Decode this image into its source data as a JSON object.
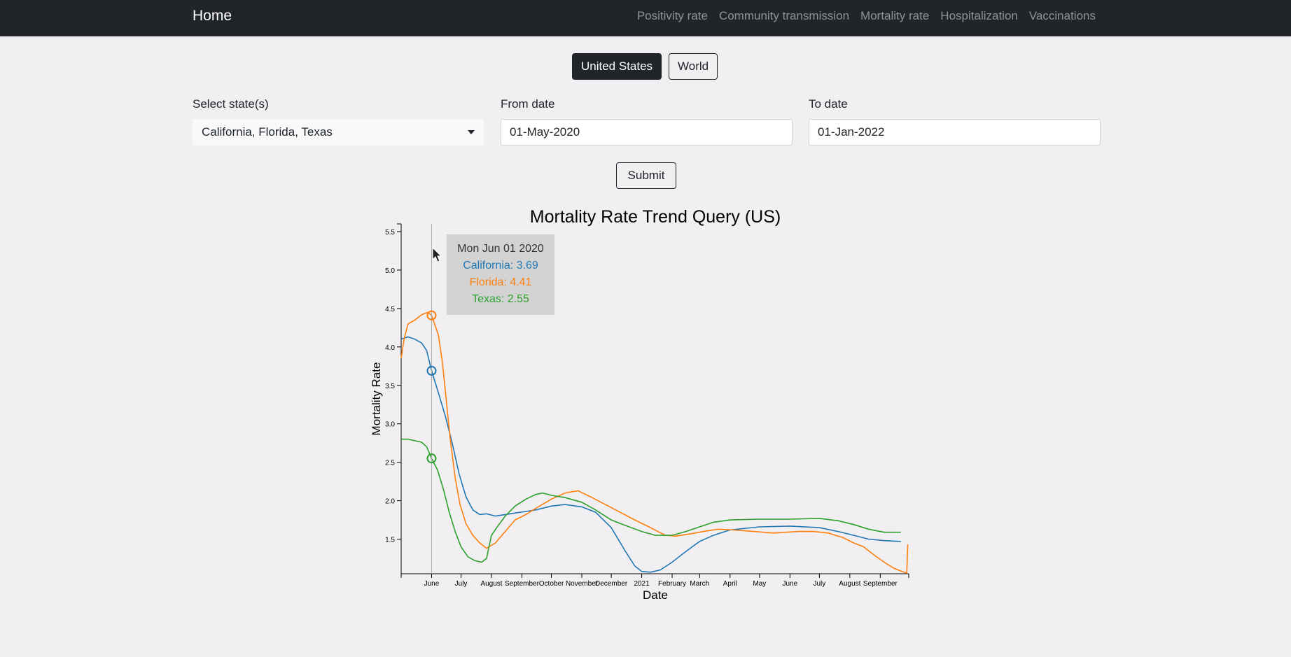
{
  "nav": {
    "brand": "Home",
    "links": [
      "Positivity rate",
      "Community transmission",
      "Mortality rate",
      "Hospitalization",
      "Vaccinations"
    ]
  },
  "toggle": {
    "us_label": "United States",
    "world_label": "World"
  },
  "form": {
    "states_label": "Select state(s)",
    "states_value": "California, Florida, Texas",
    "from_label": "From date",
    "from_value": "01-May-2020",
    "to_label": "To date",
    "to_value": "01-Jan-2022",
    "submit_label": "Submit"
  },
  "tooltip": {
    "date": "Mon Jun 01 2020",
    "lines": [
      "California: 3.69",
      "Florida: 4.41",
      "Texas: 2.55"
    ]
  },
  "colors": {
    "california": "#1f77b4",
    "florida": "#ff7f0e",
    "texas": "#2ca02c"
  },
  "chart_data": {
    "type": "line",
    "title": "Mortality Rate Trend Query (US)",
    "xlabel": "Date",
    "ylabel": "Mortality Rate",
    "xlim": [
      "2020-05-01",
      "2021-09-30"
    ],
    "ylim": [
      1.05,
      5.6
    ],
    "yticks": [
      1.5,
      2.0,
      2.5,
      3.0,
      3.5,
      4.0,
      4.5,
      5.0,
      5.5
    ],
    "xticks": [
      {
        "date": "2020-06-01",
        "label": "June"
      },
      {
        "date": "2020-07-01",
        "label": "July"
      },
      {
        "date": "2020-08-01",
        "label": "August"
      },
      {
        "date": "2020-09-01",
        "label": "September"
      },
      {
        "date": "2020-10-01",
        "label": "October"
      },
      {
        "date": "2020-11-01",
        "label": "November"
      },
      {
        "date": "2020-12-01",
        "label": "December"
      },
      {
        "date": "2021-01-01",
        "label": "2021"
      },
      {
        "date": "2021-02-01",
        "label": "February"
      },
      {
        "date": "2021-03-01",
        "label": "March"
      },
      {
        "date": "2021-04-01",
        "label": "April"
      },
      {
        "date": "2021-05-01",
        "label": "May"
      },
      {
        "date": "2021-06-01",
        "label": "June"
      },
      {
        "date": "2021-07-01",
        "label": "July"
      },
      {
        "date": "2021-08-01",
        "label": "August"
      },
      {
        "date": "2021-09-01",
        "label": "September"
      }
    ],
    "hover_date": "2020-06-01",
    "series": [
      {
        "name": "California",
        "color": "#1f77b4",
        "points": [
          [
            "2020-05-01",
            4.1
          ],
          [
            "2020-05-08",
            4.13
          ],
          [
            "2020-05-15",
            4.1
          ],
          [
            "2020-05-22",
            4.05
          ],
          [
            "2020-05-27",
            3.95
          ],
          [
            "2020-06-01",
            3.69
          ],
          [
            "2020-06-08",
            3.4
          ],
          [
            "2020-06-15",
            3.1
          ],
          [
            "2020-06-22",
            2.75
          ],
          [
            "2020-06-29",
            2.35
          ],
          [
            "2020-07-06",
            2.05
          ],
          [
            "2020-07-13",
            1.88
          ],
          [
            "2020-07-20",
            1.82
          ],
          [
            "2020-07-27",
            1.83
          ],
          [
            "2020-08-05",
            1.8
          ],
          [
            "2020-08-15",
            1.82
          ],
          [
            "2020-08-25",
            1.84
          ],
          [
            "2020-09-05",
            1.86
          ],
          [
            "2020-09-15",
            1.88
          ],
          [
            "2020-10-01",
            1.93
          ],
          [
            "2020-10-15",
            1.95
          ],
          [
            "2020-11-01",
            1.92
          ],
          [
            "2020-11-15",
            1.85
          ],
          [
            "2020-12-01",
            1.65
          ],
          [
            "2020-12-15",
            1.35
          ],
          [
            "2020-12-25",
            1.15
          ],
          [
            "2021-01-01",
            1.08
          ],
          [
            "2021-01-10",
            1.07
          ],
          [
            "2021-01-20",
            1.1
          ],
          [
            "2021-02-01",
            1.2
          ],
          [
            "2021-02-15",
            1.34
          ],
          [
            "2021-03-01",
            1.47
          ],
          [
            "2021-03-15",
            1.55
          ],
          [
            "2021-04-01",
            1.62
          ],
          [
            "2021-05-01",
            1.66
          ],
          [
            "2021-06-01",
            1.67
          ],
          [
            "2021-07-01",
            1.65
          ],
          [
            "2021-07-20",
            1.6
          ],
          [
            "2021-08-05",
            1.55
          ],
          [
            "2021-08-20",
            1.5
          ],
          [
            "2021-09-05",
            1.48
          ],
          [
            "2021-09-22",
            1.47
          ]
        ]
      },
      {
        "name": "Florida",
        "color": "#ff7f0e",
        "points": [
          [
            "2020-05-01",
            3.85
          ],
          [
            "2020-05-04",
            4.1
          ],
          [
            "2020-05-08",
            4.3
          ],
          [
            "2020-05-15",
            4.35
          ],
          [
            "2020-05-22",
            4.42
          ],
          [
            "2020-05-28",
            4.45
          ],
          [
            "2020-06-01",
            4.41
          ],
          [
            "2020-06-04",
            4.3
          ],
          [
            "2020-06-08",
            4.15
          ],
          [
            "2020-06-12",
            3.8
          ],
          [
            "2020-06-16",
            3.3
          ],
          [
            "2020-06-20",
            2.8
          ],
          [
            "2020-06-25",
            2.3
          ],
          [
            "2020-06-30",
            1.95
          ],
          [
            "2020-07-06",
            1.7
          ],
          [
            "2020-07-13",
            1.55
          ],
          [
            "2020-07-20",
            1.45
          ],
          [
            "2020-07-27",
            1.38
          ],
          [
            "2020-08-05",
            1.45
          ],
          [
            "2020-08-15",
            1.6
          ],
          [
            "2020-08-25",
            1.75
          ],
          [
            "2020-09-05",
            1.82
          ],
          [
            "2020-09-15",
            1.9
          ],
          [
            "2020-10-01",
            2.02
          ],
          [
            "2020-10-15",
            2.1
          ],
          [
            "2020-10-28",
            2.13
          ],
          [
            "2020-11-10",
            2.05
          ],
          [
            "2020-11-25",
            1.95
          ],
          [
            "2020-12-10",
            1.85
          ],
          [
            "2020-12-25",
            1.75
          ],
          [
            "2021-01-10",
            1.65
          ],
          [
            "2021-01-25",
            1.55
          ],
          [
            "2021-02-05",
            1.54
          ],
          [
            "2021-02-20",
            1.57
          ],
          [
            "2021-03-05",
            1.6
          ],
          [
            "2021-03-20",
            1.63
          ],
          [
            "2021-04-05",
            1.62
          ],
          [
            "2021-04-25",
            1.6
          ],
          [
            "2021-05-15",
            1.58
          ],
          [
            "2021-06-10",
            1.6
          ],
          [
            "2021-06-25",
            1.6
          ],
          [
            "2021-07-10",
            1.58
          ],
          [
            "2021-07-25",
            1.52
          ],
          [
            "2021-08-05",
            1.45
          ],
          [
            "2021-08-15",
            1.4
          ],
          [
            "2021-08-25",
            1.3
          ],
          [
            "2021-09-05",
            1.2
          ],
          [
            "2021-09-15",
            1.12
          ],
          [
            "2021-09-25",
            1.07
          ],
          [
            "2021-09-28",
            1.06
          ],
          [
            "2021-09-29",
            1.43
          ]
        ]
      },
      {
        "name": "Texas",
        "color": "#2ca02c",
        "points": [
          [
            "2020-05-01",
            2.8
          ],
          [
            "2020-05-08",
            2.8
          ],
          [
            "2020-05-15",
            2.78
          ],
          [
            "2020-05-22",
            2.76
          ],
          [
            "2020-05-27",
            2.7
          ],
          [
            "2020-06-01",
            2.55
          ],
          [
            "2020-06-07",
            2.4
          ],
          [
            "2020-06-13",
            2.15
          ],
          [
            "2020-06-19",
            1.85
          ],
          [
            "2020-06-25",
            1.6
          ],
          [
            "2020-07-01",
            1.4
          ],
          [
            "2020-07-08",
            1.27
          ],
          [
            "2020-07-15",
            1.22
          ],
          [
            "2020-07-22",
            1.2
          ],
          [
            "2020-07-27",
            1.25
          ],
          [
            "2020-08-01",
            1.55
          ],
          [
            "2020-08-08",
            1.68
          ],
          [
            "2020-08-15",
            1.8
          ],
          [
            "2020-08-25",
            1.93
          ],
          [
            "2020-09-05",
            2.02
          ],
          [
            "2020-09-15",
            2.08
          ],
          [
            "2020-09-22",
            2.1
          ],
          [
            "2020-10-01",
            2.07
          ],
          [
            "2020-10-15",
            2.04
          ],
          [
            "2020-11-01",
            1.98
          ],
          [
            "2020-11-15",
            1.88
          ],
          [
            "2020-12-01",
            1.75
          ],
          [
            "2020-12-15",
            1.68
          ],
          [
            "2021-01-01",
            1.6
          ],
          [
            "2021-01-15",
            1.55
          ],
          [
            "2021-02-01",
            1.55
          ],
          [
            "2021-02-15",
            1.6
          ],
          [
            "2021-03-01",
            1.66
          ],
          [
            "2021-03-15",
            1.72
          ],
          [
            "2021-04-01",
            1.75
          ],
          [
            "2021-05-01",
            1.76
          ],
          [
            "2021-06-01",
            1.76
          ],
          [
            "2021-07-01",
            1.77
          ],
          [
            "2021-07-20",
            1.74
          ],
          [
            "2021-08-05",
            1.69
          ],
          [
            "2021-08-20",
            1.63
          ],
          [
            "2021-09-05",
            1.59
          ],
          [
            "2021-09-22",
            1.59
          ]
        ]
      }
    ]
  }
}
